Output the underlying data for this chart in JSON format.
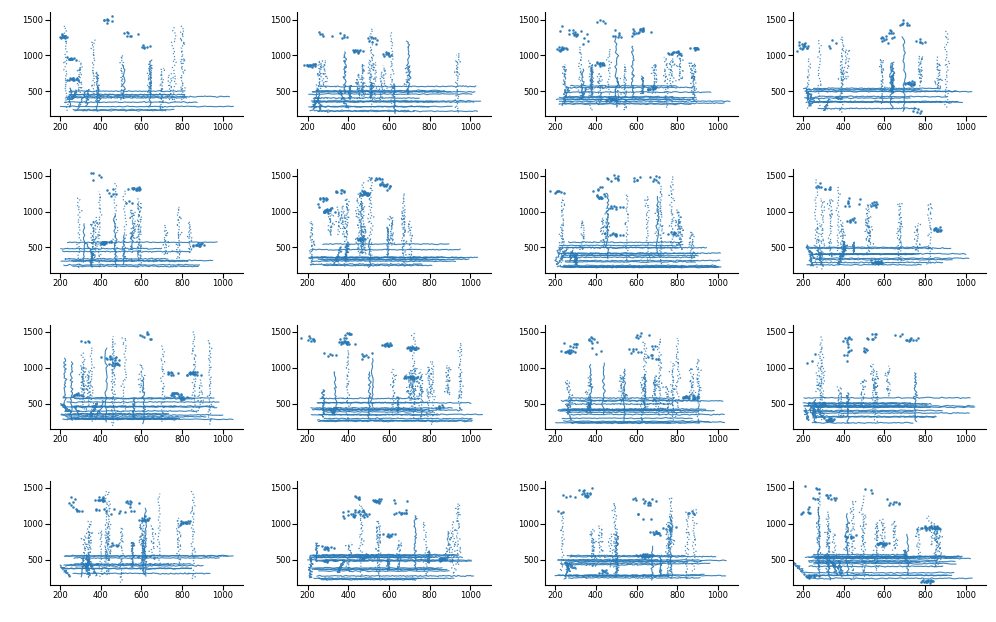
{
  "n_rows": 4,
  "n_cols": 4,
  "n_subplots": 16,
  "xlim": [
    150,
    1100
  ],
  "ylim": [
    150,
    1600
  ],
  "xticks": [
    200,
    400,
    600,
    800,
    1000
  ],
  "yticks": [
    500,
    1000,
    1500
  ],
  "color": "#2878b5",
  "background": "white",
  "linewidth": 0.8,
  "markersize": 1.8,
  "figsize": [
    9.96,
    6.22
  ],
  "dpi": 100
}
